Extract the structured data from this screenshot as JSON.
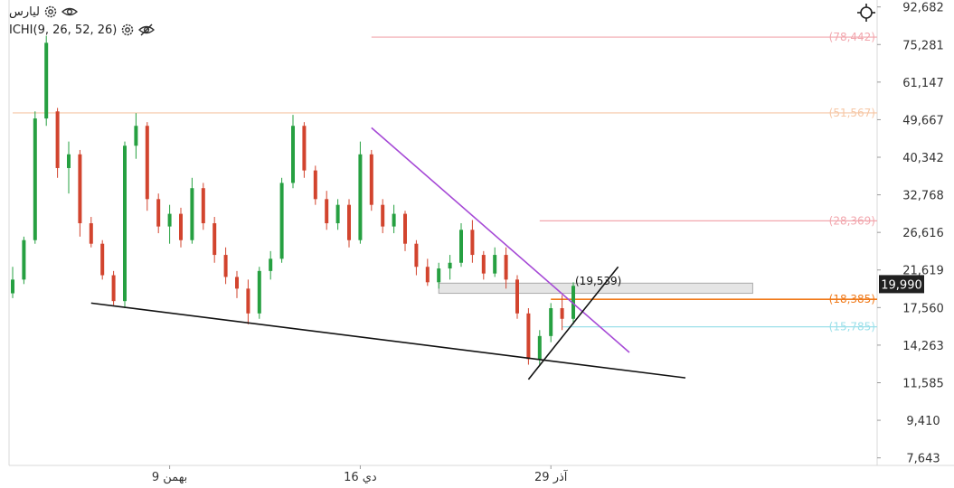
{
  "legend": {
    "symbol_name": "ليارس",
    "indicator_name": "ICHI(9, 26, 52, 26)",
    "icons": [
      "gear-icon",
      "eye-icon",
      "eye-off-icon"
    ]
  },
  "colors": {
    "up_candle": "#26a041",
    "down_candle": "#d2442e",
    "trendline_purple": "#a64ad6",
    "trendline_black": "#111111",
    "price_tag_bg": "#202020",
    "orange_line": "#f07a1a",
    "pink_line": "#f2a7ae",
    "peach_line": "#f6c7a6",
    "cyan_line": "#9ce0ea",
    "grid_axis": "#d9d9d9"
  },
  "chart_data": {
    "type": "candlestick",
    "scale": "log",
    "ylim": [
      7000,
      100000
    ],
    "y_ticks": [
      "92,682",
      "75,281",
      "61,147",
      "49,667",
      "40,342",
      "32,768",
      "26,616",
      "21,619",
      "17,560",
      "14,263",
      "11,585",
      "9,410",
      "7,643"
    ],
    "x_ticks": [
      {
        "label": "9 بهمن",
        "index": 14
      },
      {
        "label": "16 دي",
        "index": 31
      },
      {
        "label": "29 آذر",
        "index": 48
      }
    ],
    "current_price": "19,990",
    "current_price_value": 19990,
    "horizontal_levels": [
      {
        "label": "(78,442)",
        "value": 78442,
        "color": "#f2a7ae",
        "from_index": 32
      },
      {
        "label": "(51,567)",
        "value": 51567,
        "color": "#f6c7a6",
        "from_index": 0
      },
      {
        "label": "(28,369)",
        "value": 28369,
        "color": "#f2a7ae",
        "from_index": 47
      },
      {
        "label": "(18,385)",
        "value": 18385,
        "color": "#f07a1a",
        "from_index": 48
      },
      {
        "label": "(15,785)",
        "value": 15785,
        "color": "#9ce0ea",
        "from_index": 49
      }
    ],
    "annotation": {
      "label": "(19,539)",
      "value": 19539,
      "index": 50
    },
    "shaded_zone": {
      "from_index": 38,
      "to_index": 66,
      "low": 19000,
      "high": 20100
    },
    "trendlines": [
      {
        "name": "upper-trendline",
        "color": "#a64ad6",
        "from": [
          32,
          47500
        ],
        "to": [
          55,
          13700
        ]
      },
      {
        "name": "lower-support",
        "color": "#111111",
        "from": [
          7,
          18000
        ],
        "to": [
          60,
          11900
        ]
      },
      {
        "name": "rising-line",
        "color": "#111111",
        "from": [
          46,
          11800
        ],
        "to": [
          54,
          22000
        ]
      }
    ],
    "candles": [
      [
        19000,
        22000,
        18500,
        20500
      ],
      [
        20500,
        26000,
        20000,
        25500
      ],
      [
        25500,
        52000,
        25000,
        50000
      ],
      [
        50000,
        79000,
        48000,
        76000
      ],
      [
        52000,
        53000,
        36000,
        38000
      ],
      [
        38000,
        44000,
        33000,
        41000
      ],
      [
        41000,
        42000,
        26000,
        28000
      ],
      [
        28000,
        29000,
        24500,
        25000
      ],
      [
        25000,
        25500,
        20500,
        21000
      ],
      [
        21000,
        21500,
        17800,
        18200
      ],
      [
        18200,
        44000,
        17500,
        43000
      ],
      [
        43000,
        51500,
        40000,
        48000
      ],
      [
        48000,
        49000,
        30000,
        32000
      ],
      [
        32000,
        33000,
        26500,
        27500
      ],
      [
        27500,
        31000,
        25000,
        29500
      ],
      [
        29500,
        30500,
        24500,
        25500
      ],
      [
        25500,
        36000,
        25000,
        34000
      ],
      [
        34000,
        35000,
        27000,
        28000
      ],
      [
        28000,
        29000,
        22500,
        23500
      ],
      [
        23500,
        24500,
        20000,
        20800
      ],
      [
        20800,
        21500,
        18500,
        19500
      ],
      [
        19500,
        20500,
        16000,
        17000
      ],
      [
        17000,
        22000,
        16500,
        21500
      ],
      [
        21500,
        24000,
        20500,
        23000
      ],
      [
        23000,
        36000,
        22500,
        35000
      ],
      [
        35000,
        51000,
        34000,
        48000
      ],
      [
        48000,
        49000,
        36000,
        37500
      ],
      [
        37500,
        38500,
        31000,
        32000
      ],
      [
        32000,
        33500,
        27000,
        28000
      ],
      [
        28000,
        32000,
        27000,
        31000
      ],
      [
        31000,
        32000,
        24500,
        25500
      ],
      [
        25500,
        44000,
        25000,
        41000
      ],
      [
        41000,
        42000,
        30000,
        31000
      ],
      [
        31000,
        32000,
        26500,
        27500
      ],
      [
        27500,
        31000,
        26500,
        29500
      ],
      [
        29500,
        30000,
        24000,
        25000
      ],
      [
        25000,
        25500,
        21000,
        22000
      ],
      [
        22000,
        23000,
        19800,
        20200
      ],
      [
        20200,
        22500,
        19500,
        21800
      ],
      [
        21800,
        23500,
        20500,
        22500
      ],
      [
        22500,
        28000,
        22000,
        27000
      ],
      [
        27000,
        28500,
        22500,
        23500
      ],
      [
        23500,
        24000,
        20500,
        21200
      ],
      [
        21200,
        24500,
        20800,
        23500
      ],
      [
        23500,
        24500,
        19500,
        20500
      ],
      [
        20500,
        21000,
        16500,
        17000
      ],
      [
        17000,
        17500,
        12800,
        13200
      ],
      [
        13200,
        15500,
        12700,
        15000
      ],
      [
        15000,
        18000,
        14500,
        17500
      ],
      [
        17500,
        18800,
        15500,
        16500
      ],
      [
        16500,
        20200,
        16000,
        19800
      ]
    ]
  }
}
